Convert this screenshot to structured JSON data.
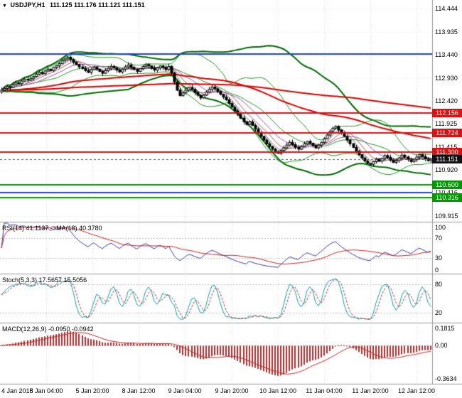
{
  "header": {
    "marker": "▼",
    "symbol": "USDJPY,H1",
    "ohlc": "111.125 111.176 111.121 111.151"
  },
  "colors": {
    "grid": "#dedede",
    "grid_h": "#ececec",
    "panel_border": "#9a9a9a",
    "candle_up": "#ffffff",
    "candle_down": "#000000",
    "candle_outline": "#000000",
    "bollinger": "#1a9a1a",
    "envelope": "#006b00",
    "ma_fan": [
      "#808080",
      "#b34d4d",
      "#9055aa"
    ],
    "ma_red": "#e00000",
    "hline_blue": "#2244cc",
    "hline_red": "#dd1111",
    "hline_green": "#009900",
    "badge_current_bg": "#111111",
    "rsi": "#3a3aa0",
    "rsi_ma": "#cc2222",
    "stoch_k": "#00a3a3",
    "stoch_d": "#cc2222",
    "macd_hist": "#b03030",
    "macd_signal": "#cc2222",
    "last_price_line": "#555555"
  },
  "chart_data": [
    {
      "type": "candlestick",
      "title": "USDJPY,H1",
      "y_range": [
        109.8,
        114.6
      ],
      "y_ticks": [
        "114.444",
        "113.935",
        "113.440",
        "112.930",
        "112.420",
        "111.925",
        "111.415",
        "110.920",
        "110.416",
        "109.915"
      ],
      "open_first": 112.62,
      "close": [
        112.66,
        112.7,
        112.74,
        112.72,
        112.78,
        112.82,
        112.8,
        112.86,
        112.9,
        112.88,
        112.92,
        112.96,
        113.01,
        113.05,
        113.02,
        113.08,
        113.12,
        113.09,
        113.16,
        113.2,
        113.24,
        113.3,
        113.34,
        113.38,
        113.33,
        113.27,
        113.22,
        113.17,
        113.13,
        113.09,
        113.05,
        113.11,
        113.16,
        113.12,
        113.07,
        113.03,
        113.09,
        113.14,
        113.18,
        113.15,
        113.1,
        113.06,
        113.12,
        113.17,
        113.21,
        113.16,
        113.11,
        113.07,
        113.13,
        113.18,
        113.22,
        113.19,
        113.14,
        113.1,
        113.15,
        113.19,
        113.16,
        113.11,
        113.18,
        113.04,
        112.84,
        112.66,
        112.54,
        112.6,
        112.66,
        112.72,
        112.68,
        112.61,
        112.55,
        112.49,
        112.55,
        112.62,
        112.68,
        112.73,
        112.69,
        112.63,
        112.57,
        112.51,
        112.45,
        112.37,
        112.29,
        112.21,
        112.13,
        112.05,
        111.97,
        111.91,
        111.97,
        111.89,
        111.81,
        111.73,
        111.65,
        111.57,
        111.49,
        111.43,
        111.37,
        111.32,
        111.28,
        111.34,
        111.4,
        111.46,
        111.52,
        111.47,
        111.41,
        111.37,
        111.43,
        111.49,
        111.54,
        111.5,
        111.45,
        111.4,
        111.46,
        111.52,
        111.6,
        111.68,
        111.76,
        111.83,
        111.87,
        111.79,
        111.72,
        111.65,
        111.57,
        111.49,
        111.41,
        111.33,
        111.25,
        111.18,
        111.11,
        111.06,
        111.04,
        111.1,
        111.16,
        111.11,
        111.17,
        111.23,
        111.19,
        111.13,
        111.08,
        111.12,
        111.18,
        111.24,
        111.2,
        111.15,
        111.1,
        111.14,
        111.2,
        111.25,
        111.21,
        111.16,
        111.12,
        111.15
      ],
      "overlays": {
        "bollinger": {
          "period": 20,
          "dev": 2.0
        },
        "envelope": {
          "period": 45,
          "dev": 2.2
        },
        "ma_fan_periods": [
          5,
          8,
          13
        ],
        "red_ma_periods": [
          80,
          300
        ]
      },
      "hlines": [
        {
          "price": 113.445,
          "color": "#2244cc",
          "width": 2,
          "badge": null
        },
        {
          "price": 112.156,
          "color": "#dd1111",
          "width": 2,
          "badge": "112.156"
        },
        {
          "price": 111.724,
          "color": "#dd1111",
          "width": 2,
          "badge": "111.724"
        },
        {
          "price": 111.3,
          "color": "#dd1111",
          "width": 2,
          "badge": "111.300"
        },
        {
          "price": 110.6,
          "color": "#009900",
          "width": 2,
          "badge": "110.600"
        },
        {
          "price": 110.425,
          "color": "#2244cc",
          "width": 2,
          "badge": null
        },
        {
          "price": 110.316,
          "color": "#009900",
          "width": 2,
          "badge": "110.316"
        }
      ],
      "last_price": {
        "text": "111.151",
        "price": 111.151
      },
      "x_labels": [
        {
          "text": "4 Jan 2018",
          "x": 0.0
        },
        {
          "text": "5 Jan 04:00",
          "x": 0.107
        },
        {
          "text": "5 Jan 20:00",
          "x": 0.214
        },
        {
          "text": "8 Jan 12:00",
          "x": 0.321
        },
        {
          "text": "9 Jan 04:00",
          "x": 0.428
        },
        {
          "text": "9 Jan 20:00",
          "x": 0.536
        },
        {
          "text": "10 Jan 12:00",
          "x": 0.643
        },
        {
          "text": "11 Jan 04:00",
          "x": 0.75
        },
        {
          "text": "11 Jan 20:00",
          "x": 0.857
        },
        {
          "text": "12 Jan 12:00",
          "x": 0.964
        }
      ]
    },
    {
      "type": "line",
      "name": "RSI",
      "label": "RSI(14) 41.1137 ->MA(18) 40.3780",
      "period": 14,
      "ma_period": 18,
      "y_range": [
        0,
        100
      ],
      "y_ticks": [
        "100",
        "70",
        "30",
        "0"
      ],
      "levels": [
        70,
        30
      ],
      "last_values": [
        41.1137,
        40.378
      ]
    },
    {
      "type": "line",
      "name": "Stochastic",
      "label": "Stoch(5,3,3) 17.5657 15.5056",
      "params": [
        5,
        3,
        3
      ],
      "y_range": [
        0,
        100
      ],
      "y_ticks": [
        "80",
        "20"
      ],
      "levels": [
        80,
        20
      ],
      "last_values": [
        17.5657,
        15.5056
      ]
    },
    {
      "type": "macd",
      "name": "MACD",
      "label": "MACD(12,26,9) -0.0950 -0.0942",
      "params": [
        12,
        26,
        9
      ],
      "y_range": [
        0.23,
        -0.42
      ],
      "y_ticks": [
        "0.1815",
        "0.00",
        "-0.3634"
      ],
      "last_values": [
        -0.095,
        -0.0942
      ]
    }
  ]
}
